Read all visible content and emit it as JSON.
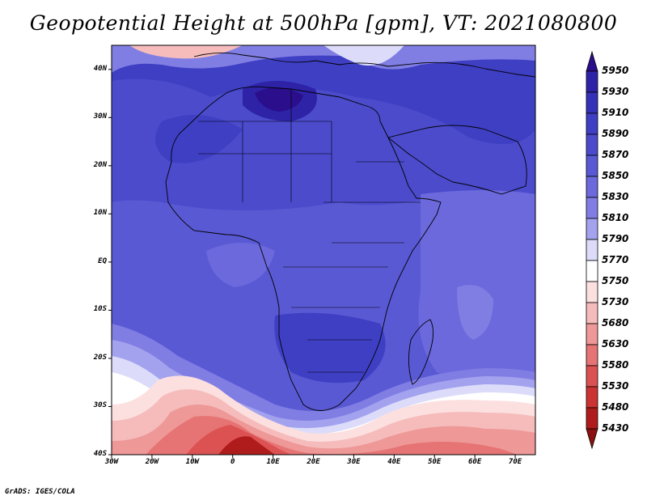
{
  "title": "Geopotential Height at 500hPa [gpm], VT: 2021080800",
  "footer": "GrADS: IGES/COLA",
  "map": {
    "region": "Africa",
    "projection": "latlon",
    "lon_range": [
      -30,
      75
    ],
    "lat_range": [
      -40,
      45
    ],
    "lat_ticks": [
      "40N",
      "30N",
      "20N",
      "10N",
      "EQ",
      "10S",
      "20S",
      "30S",
      "40S"
    ],
    "lon_ticks": [
      "30W",
      "20W",
      "10W",
      "0",
      "10E",
      "20E",
      "30E",
      "40E",
      "50E",
      "60E",
      "70E"
    ],
    "field": {
      "name": "Geopotential Height",
      "level": "500hPa",
      "units": "gpm",
      "valid_time": "2021080800"
    }
  },
  "colorbar": {
    "levels": [
      "5950",
      "5930",
      "5910",
      "5890",
      "5870",
      "5850",
      "5830",
      "5810",
      "5790",
      "5770",
      "5750",
      "5730",
      "5680",
      "5630",
      "5580",
      "5530",
      "5480",
      "5430"
    ],
    "colors": [
      "#2a0e8c",
      "#2e23a6",
      "#3532b8",
      "#3f3fc4",
      "#4b4bcc",
      "#5a59d4",
      "#6b69dc",
      "#807ee3",
      "#a3a2ee",
      "#dcdcfa",
      "#ffffff",
      "#fce0e0",
      "#f6bcbc",
      "#ee9898",
      "#e67474",
      "#dc5252",
      "#cc3434",
      "#b01c1c",
      "#8c1010"
    ]
  }
}
